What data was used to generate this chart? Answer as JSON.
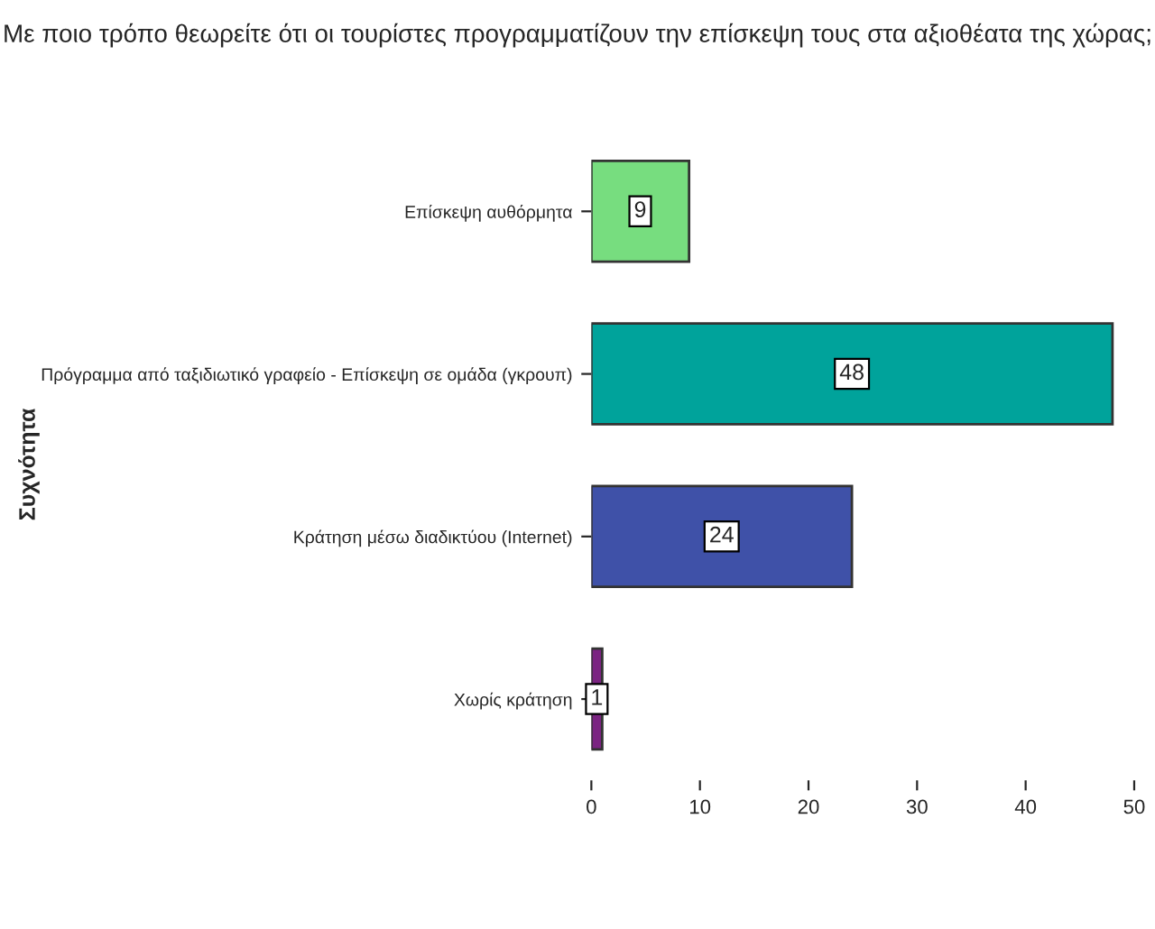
{
  "chart_data": {
    "type": "bar",
    "orientation": "horizontal",
    "title": "Με ποιο τρόπο θεωρείτε ότι οι τουρίστες προγραμματίζουν την επίσκεψη τους στα αξιοθέατα της χώρας;",
    "ylabel": "Συχνότητα",
    "categories": [
      "Επίσκεψη αυθόρμητα",
      "Πρόγραμμα από ταξιδιωτικό γραφείο - Επίσκεψη σε ομάδα (γκρουπ)",
      "Κράτηση μέσω διαδικτύου (Internet)",
      "Χωρίς κράτηση"
    ],
    "values": [
      9,
      48,
      24,
      1
    ],
    "colors": [
      "#77dd7f",
      "#00a39b",
      "#3f51a8",
      "#7b2482"
    ],
    "xlim": [
      0,
      50
    ],
    "xticks": [
      0,
      10,
      20,
      30,
      40,
      50
    ],
    "data_labels": true,
    "grid": false,
    "legend": false
  }
}
